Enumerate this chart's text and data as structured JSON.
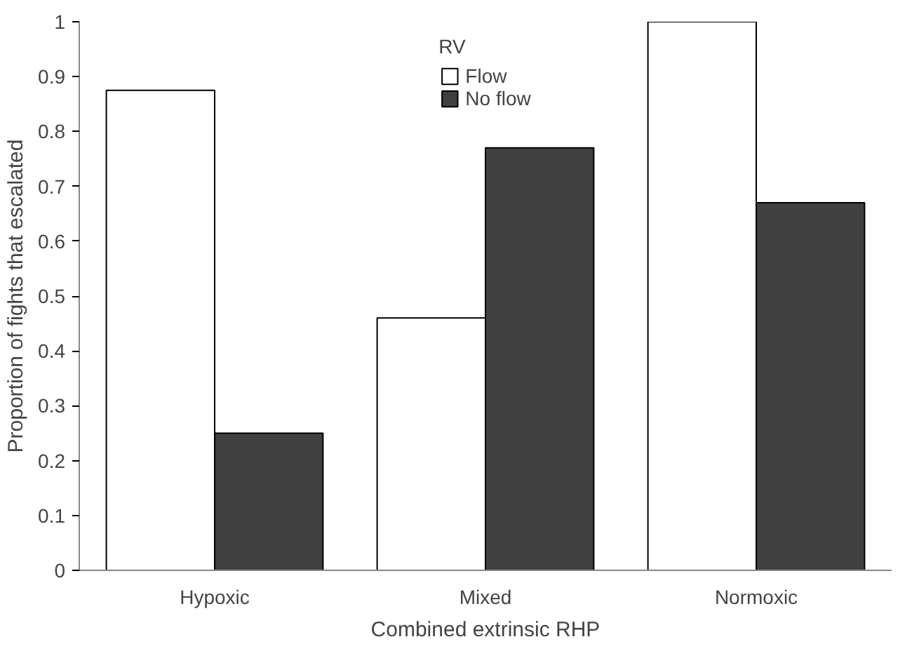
{
  "chart_data": {
    "type": "bar",
    "xlabel": "Combined extrinsic RHP",
    "ylabel": "Proportion of fights that escalated",
    "legend_title": "RV",
    "categories": [
      "Hypoxic",
      "Mixed",
      "Normoxic"
    ],
    "series": [
      {
        "name": "Flow",
        "color": "#ffffff",
        "values": [
          0.875,
          0.46,
          1.0
        ]
      },
      {
        "name": "No flow",
        "color": "#404040",
        "values": [
          0.25,
          0.77,
          0.67
        ]
      }
    ],
    "ylim": [
      0,
      1
    ],
    "yticks": [
      0,
      0.1,
      0.2,
      0.3,
      0.4,
      0.5,
      0.6,
      0.7,
      0.8,
      0.9,
      1
    ],
    "grid": false,
    "legend": "top"
  }
}
